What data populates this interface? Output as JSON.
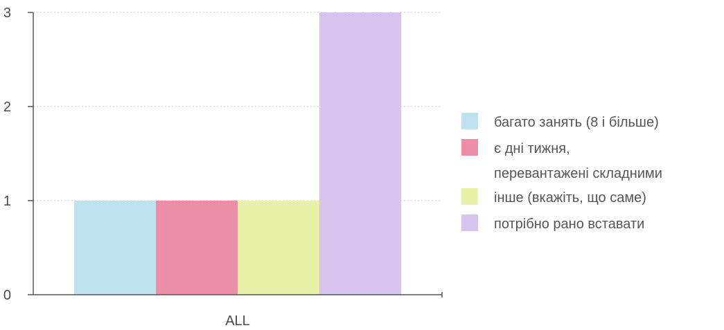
{
  "chart_data": {
    "type": "bar",
    "categories": [
      "ALL"
    ],
    "series": [
      {
        "name": "багато занять (8 і більше)",
        "values": [
          1
        ],
        "color": "#bfe2f1"
      },
      {
        "name": "є дні тижня, перевантажені складними",
        "values": [
          1
        ],
        "color": "#ec8fa6"
      },
      {
        "name": "інше (вкажіть, що саме)",
        "values": [
          1
        ],
        "color": "#e9f1a8"
      },
      {
        "name": "потрібно рано вставати",
        "values": [
          3
        ],
        "color": "#d6c3ee"
      }
    ],
    "yticks": [
      0,
      1,
      2,
      3
    ],
    "ylim": [
      0,
      3
    ],
    "grid": true,
    "legend": "right"
  }
}
